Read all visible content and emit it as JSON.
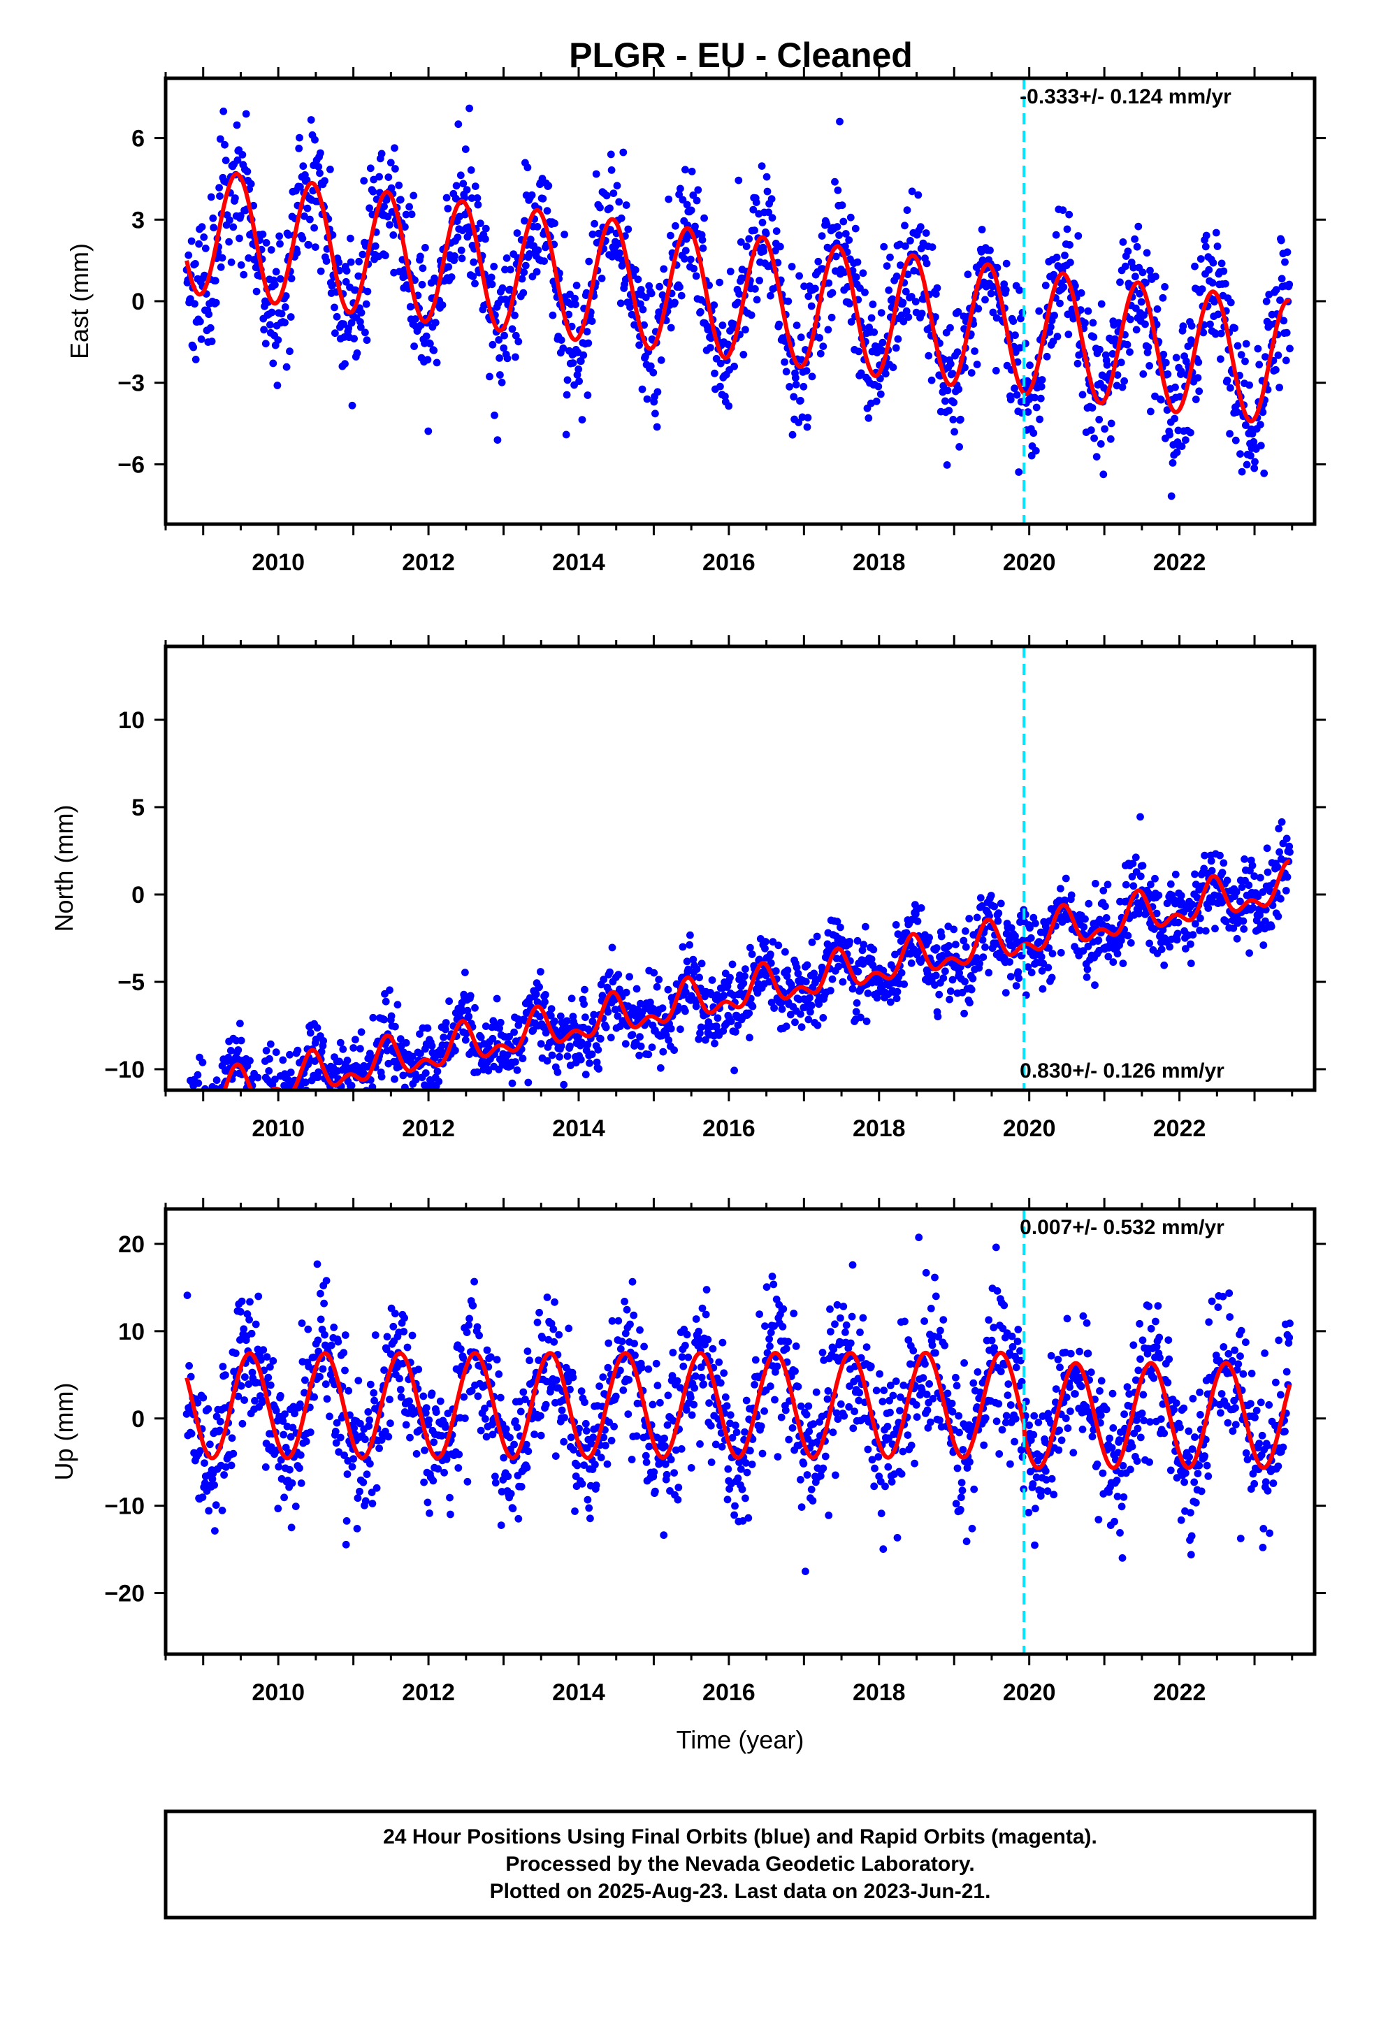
{
  "title": "PLGR  - EU - Cleaned",
  "colors": {
    "final_orbits": "#0000ff",
    "rapid_orbits": "#ff00ff",
    "model_fit": "#ff0000",
    "event_line": "#00e5ff",
    "frame": "#000000"
  },
  "footer": {
    "line1": "24 Hour Positions Using Final Orbits (blue) and Rapid Orbits (magenta).",
    "line2": "Processed by the Nevada Geodetic Laboratory.",
    "line3": "Plotted on 2025-Aug-23. Last data on 2023-Jun-21."
  },
  "chart_data": [
    {
      "type": "scatter",
      "name": "east",
      "title": "PLGR  - EU - Cleaned",
      "xlabel": "",
      "ylabel": "East (mm)",
      "xlim": [
        2008.5,
        2023.8
      ],
      "ylim": [
        -8.2,
        8.2
      ],
      "x_ticks": [
        "2010",
        "2012",
        "2014",
        "2016",
        "2018",
        "2020",
        "2022"
      ],
      "y_ticks": [
        "6",
        "3",
        "0",
        "−3",
        "−6"
      ],
      "y_tick_values": [
        6,
        3,
        0,
        -3,
        -6
      ],
      "rate_label": "-0.333+/- 0.124 mm/yr",
      "rate_position": "top",
      "event_lines": [
        2019.93
      ],
      "data_range": [
        2008.78,
        2023.47
      ],
      "model": {
        "offset": 0.2,
        "rate": -0.333,
        "annual_amp": 2.3,
        "annual_peak": 0.45,
        "semiannual_amp": 0.0,
        "scatter_sd": 1.3,
        "step_at": 2019.93,
        "step_size": 0.0
      },
      "seed": 11
    },
    {
      "type": "scatter",
      "name": "north",
      "xlabel": "",
      "ylabel": "North (mm)",
      "xlim": [
        2008.5,
        2023.8
      ],
      "ylim": [
        -11.2,
        14.2
      ],
      "x_ticks": [
        "2010",
        "2012",
        "2014",
        "2016",
        "2018",
        "2020",
        "2022"
      ],
      "y_ticks": [
        "10",
        "5",
        "0",
        "−5",
        "−10"
      ],
      "y_tick_values": [
        10,
        5,
        0,
        -5,
        -10
      ],
      "rate_label": "0.830+/- 0.126 mm/yr",
      "rate_position": "bottom",
      "event_lines": [
        2019.93
      ],
      "data_range": [
        2008.78,
        2023.47
      ],
      "model": {
        "offset": -5.8,
        "rate": 0.83,
        "annual_amp": 0.9,
        "annual_peak": 0.45,
        "semiannual_amp": 0.6,
        "scatter_sd": 1.1,
        "step_at": 2019.93,
        "step_size": 0.0
      },
      "seed": 23
    },
    {
      "type": "scatter",
      "name": "up",
      "xlabel": "Time (year)",
      "ylabel": "Up (mm)",
      "xlim": [
        2008.5,
        2023.8
      ],
      "ylim": [
        -27,
        24
      ],
      "x_ticks": [
        "2010",
        "2012",
        "2014",
        "2016",
        "2018",
        "2020",
        "2022"
      ],
      "y_ticks": [
        "20",
        "10",
        "0",
        "−10",
        "−20"
      ],
      "y_tick_values": [
        20,
        10,
        0,
        -10,
        -20
      ],
      "rate_label": "0.007+/- 0.532 mm/yr",
      "rate_position": "top",
      "event_lines": [
        2019.93
      ],
      "data_range": [
        2008.78,
        2023.47
      ],
      "model": {
        "offset": 1.5,
        "rate": 0.007,
        "annual_amp": 6.0,
        "annual_peak": 0.62,
        "semiannual_amp": 0.0,
        "scatter_sd": 4.2,
        "step_at": 2019.93,
        "step_size": -1.2
      },
      "seed": 37
    }
  ]
}
